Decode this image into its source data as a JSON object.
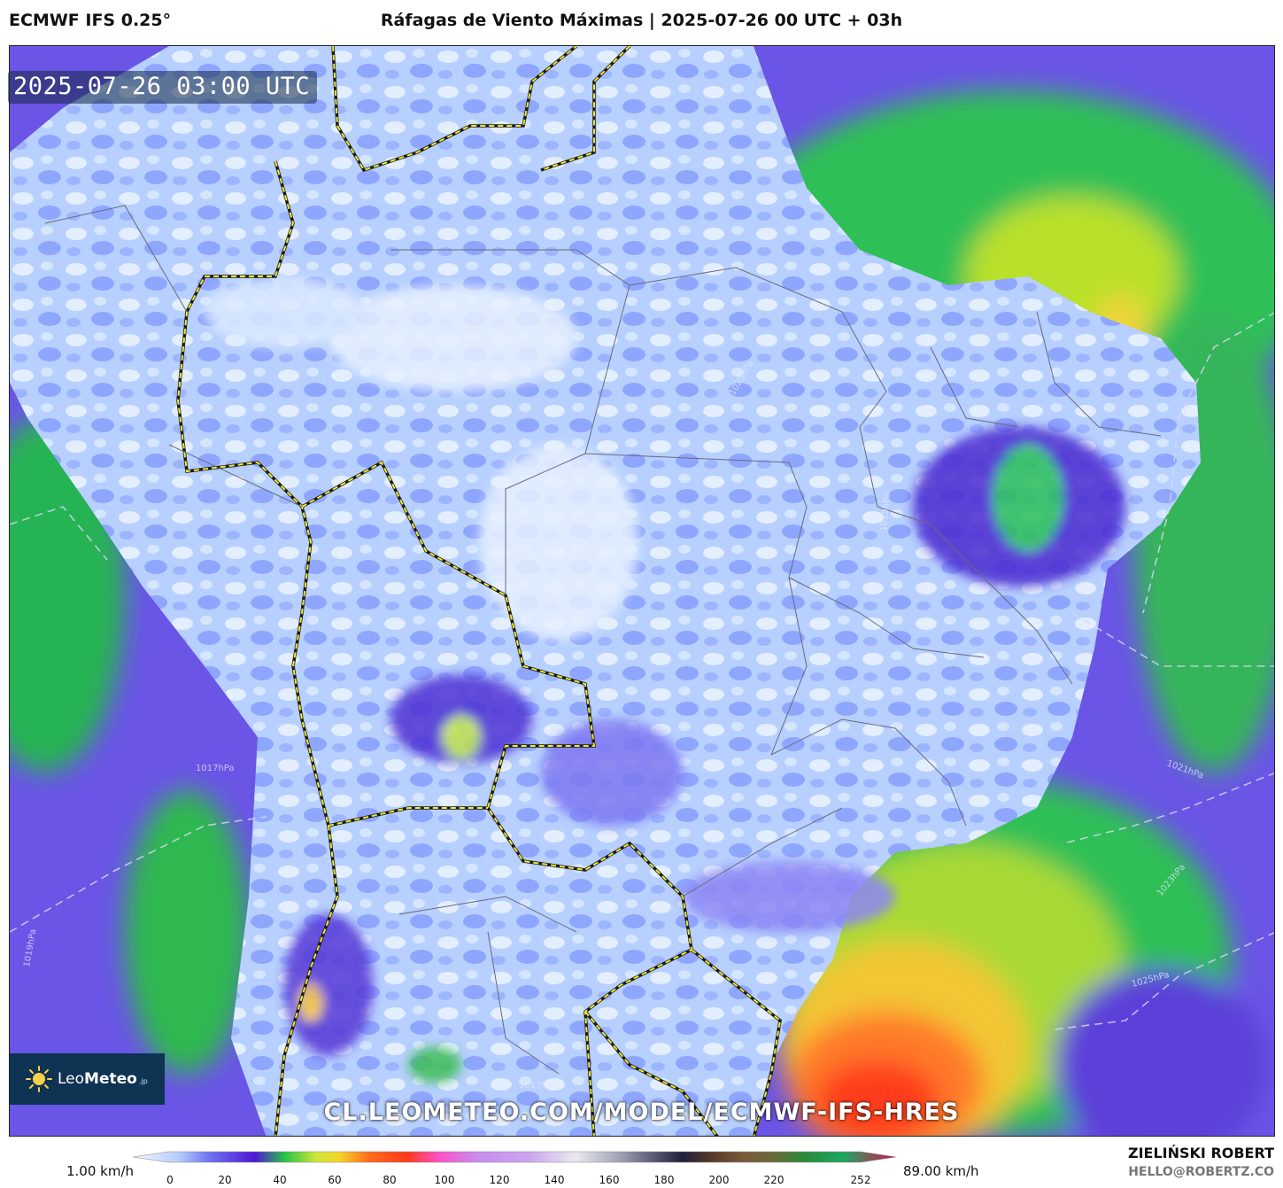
{
  "header": {
    "model": "ECMWF IFS 0.25°",
    "title": "Ráfagas de Viento Máximas | 2025-07-26 00 UTC + 03h"
  },
  "map": {
    "valid_time": "2025-07-26 03:00 UTC",
    "watermark": "CL.LEOMETEO.COM/MODEL/ECMWF-IFS-HRES",
    "isobar_labels": [
      "1017hPa",
      "1019hPa",
      "1021hPa",
      "1023hPa",
      "1025hPa",
      "1025hPa",
      "1017hPa",
      "1019hPa"
    ]
  },
  "logo": {
    "name_light": "Leo",
    "name_bold": "Meteo",
    "tld": ".jp"
  },
  "colorbar": {
    "min_label": "1.00 km/h",
    "max_label": "89.00 km/h",
    "ticks": [
      "0",
      "20",
      "40",
      "60",
      "80",
      "100",
      "120",
      "140",
      "160",
      "180",
      "200",
      "220",
      "252"
    ],
    "colors": [
      "#dbeaff",
      "#6f74f0",
      "#4f17d6",
      "#28c846",
      "#f4e629",
      "#ff3a1c",
      "#ff4fc6",
      "#caa6ef",
      "#e9e9ef",
      "#9fa0b2",
      "#20203a",
      "#5a3a2a",
      "#7a5a3a",
      "#2a8a3a",
      "#d7144d"
    ]
  },
  "credits": {
    "author": "ZIELIŃSKI ROBERT",
    "email": "HELLO@ROBERTZ.CO"
  }
}
